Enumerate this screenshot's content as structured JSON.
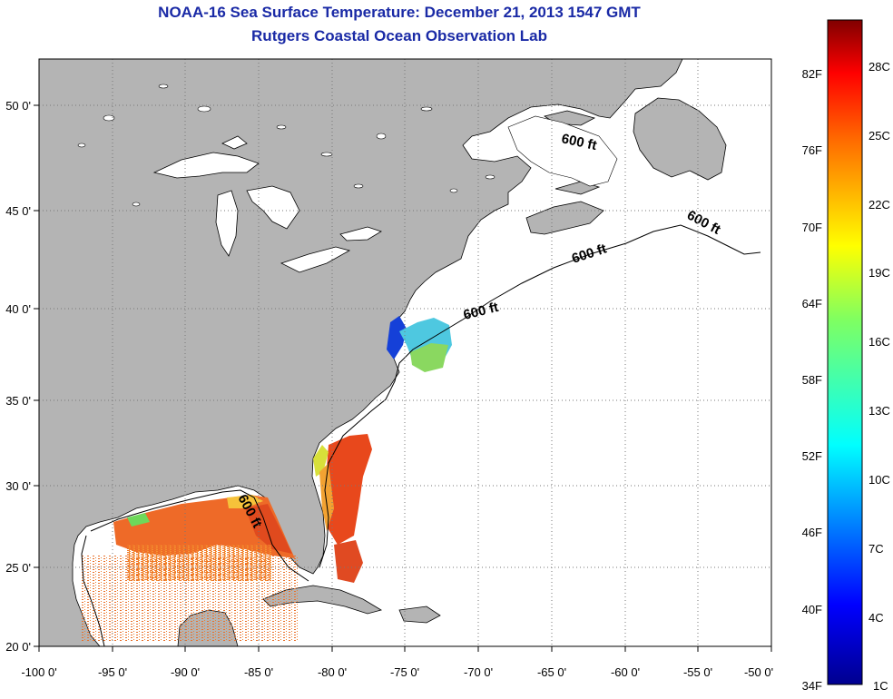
{
  "title": "NOAA-16 Sea Surface Temperature:  December 21, 2013 1547 GMT",
  "subtitle": "Rutgers Coastal Ocean Observation Lab",
  "colors": {
    "land": "#b4b4b4",
    "ocean": "#ffffff",
    "title": "#1a2aa6",
    "grid": "#777777"
  },
  "map": {
    "lon_ticks": [
      "-100 0'",
      "-95 0'",
      "-90 0'",
      "-85 0'",
      "-80 0'",
      "-75 0'",
      "-70 0'",
      "-65 0'",
      "-60 0'",
      "-55 0'",
      "-50 0'"
    ],
    "lat_ticks": [
      "50 0'",
      "45 0'",
      "40 0'",
      "35 0'",
      "30 0'",
      "25 0'",
      "20 0'"
    ],
    "lon_range": [
      -100,
      -50
    ],
    "lat_range": [
      20,
      52.5
    ],
    "isobath_labels": [
      "600 ft",
      "600 ft",
      "600 ft",
      "600 ft",
      "600 ft"
    ]
  },
  "colorbar": {
    "fahrenheit_labels": [
      "82F",
      "76F",
      "70F",
      "64F",
      "58F",
      "52F",
      "46F",
      "40F",
      "34F"
    ],
    "celsius_labels": [
      "28C",
      "25C",
      "22C",
      "19C",
      "16C",
      "13C",
      "10C",
      "7C",
      "4C",
      "1C"
    ],
    "range_c": [
      1,
      30
    ]
  }
}
